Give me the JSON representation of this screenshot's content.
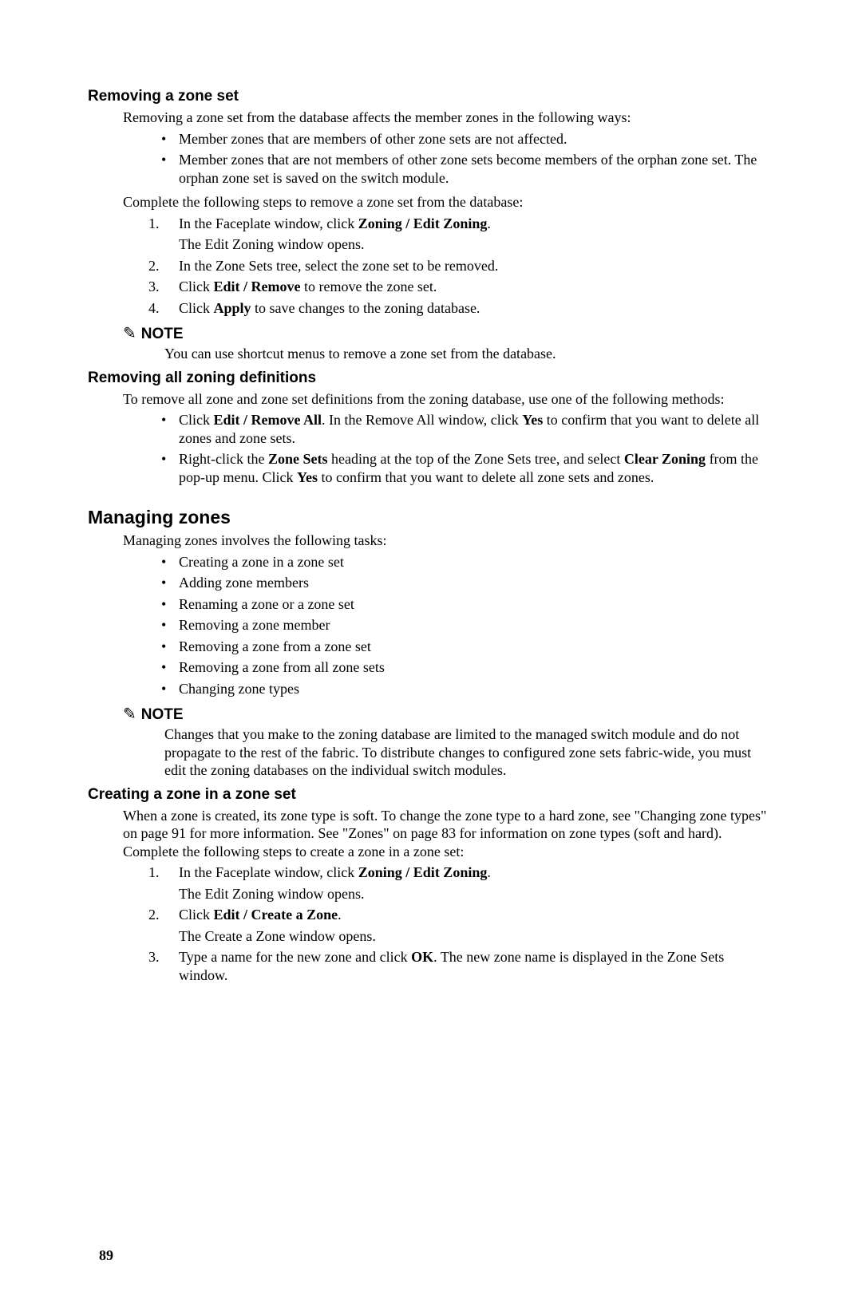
{
  "section1": {
    "heading": "Removing a zone set",
    "intro": "Removing a zone set from the database affects the member zones in the following ways:",
    "bullets": [
      "Member zones that are members of other zone sets are not affected.",
      "Member zones that are not members of other zone sets become members of the orphan zone set. The orphan zone set is saved on the switch module."
    ],
    "lead": "Complete the following steps to remove a zone set from the database:",
    "steps": {
      "s1_a": "In the Faceplate window, click ",
      "s1_b": "Zoning / Edit Zoning",
      "s1_c": ".",
      "s1_sub": "The Edit Zoning window opens.",
      "s2": "In the Zone Sets tree, select the zone set to be removed.",
      "s3_a": "Click ",
      "s3_b": "Edit / Remove",
      "s3_c": " to remove the zone set.",
      "s4_a": "Click ",
      "s4_b": "Apply",
      "s4_c": " to save changes to the zoning database."
    },
    "note_label": "NOTE",
    "note_body": "You can use shortcut menus to remove a zone set from the database."
  },
  "section2": {
    "heading": "Removing all zoning definitions",
    "intro": "To remove all zone and zone set definitions from the zoning database, use one of the following methods:",
    "b1_a": "Click ",
    "b1_b": "Edit / Remove All",
    "b1_c": ". In the Remove All window, click ",
    "b1_d": "Yes",
    "b1_e": " to confirm that you want to delete all zones and zone sets.",
    "b2_a": "Right-click the ",
    "b2_b": "Zone Sets",
    "b2_c": " heading at the top of the Zone Sets tree, and select ",
    "b2_d": "Clear Zoning",
    "b2_e": " from the pop-up menu. Click ",
    "b2_f": "Yes",
    "b2_g": " to confirm that you want to delete all zone sets and zones."
  },
  "section3": {
    "heading": "Managing zones",
    "intro": "Managing zones involves the following tasks:",
    "bullets": [
      "Creating a zone in a zone set",
      "Adding zone members",
      "Renaming a zone or a zone set",
      "Removing a zone member",
      "Removing a zone from a zone set",
      "Removing a zone from all zone sets",
      "Changing zone types"
    ],
    "note_label": "NOTE",
    "note_body": "Changes that you make to the zoning database are limited to the managed switch module and do not propagate to the rest of the fabric. To distribute changes to configured zone sets fabric-wide, you must edit the zoning databases on the individual switch modules."
  },
  "section4": {
    "heading": "Creating a zone in a zone set",
    "intro": "When a zone is created, its zone type is soft. To change the zone type to a hard zone, see \"Changing zone types\" on page 91 for more information. See \"Zones\" on page 83 for information on zone types (soft and hard). Complete the following steps to create a zone in a zone set:",
    "s1_a": "In the Faceplate window, click ",
    "s1_b": "Zoning / Edit Zoning",
    "s1_c": ".",
    "s1_sub": "The Edit Zoning window opens.",
    "s2_a": "Click ",
    "s2_b": "Edit / Create a Zone",
    "s2_c": ".",
    "s2_sub": "The Create a Zone window opens.",
    "s3_a": "Type a name for the new zone and click ",
    "s3_b": "OK",
    "s3_c": ". The new zone name is displayed in the Zone Sets window."
  },
  "page_number": "89",
  "note_icon_glyph": "✎"
}
